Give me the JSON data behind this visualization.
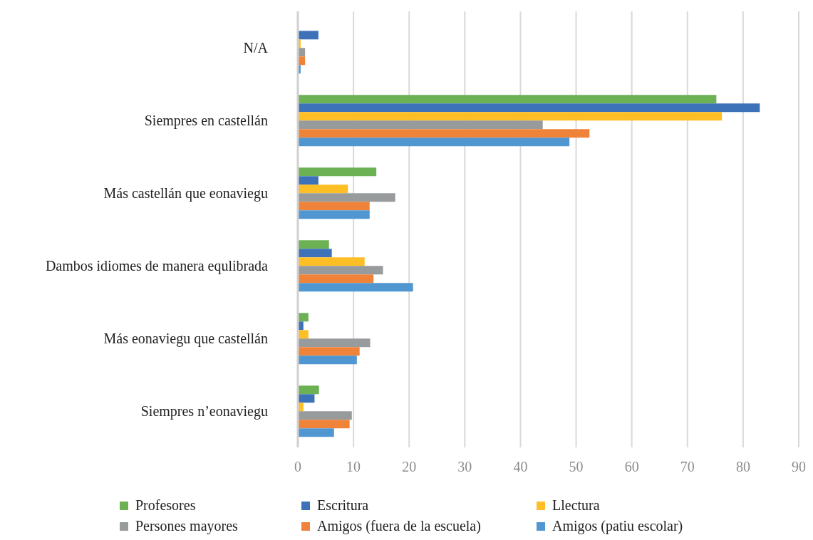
{
  "chart_data": {
    "type": "bar",
    "orientation": "horizontal",
    "categories": [
      "N/A",
      "Siempres en castellán",
      "Más castellán que eonaviegu",
      "Dambos idiomes de manera equlibrada",
      "Más eonaviegu que castellán",
      "Siempres n’eonaviegu"
    ],
    "series": [
      {
        "name": "Profesores",
        "color": "#6db155",
        "values": [
          0,
          75.2,
          14.1,
          5.6,
          1.9,
          3.8
        ]
      },
      {
        "name": "Escritura",
        "color": "#3d72b9",
        "values": [
          3.7,
          83.0,
          3.7,
          6.1,
          1.0,
          3.0
        ]
      },
      {
        "name": "Llectura",
        "color": "#febf26",
        "values": [
          0.5,
          76.2,
          9.0,
          12.0,
          1.9,
          1.0
        ]
      },
      {
        "name": "Persones mayores",
        "color": "#989b9c",
        "values": [
          1.3,
          44.0,
          17.5,
          15.3,
          13.0,
          9.7
        ]
      },
      {
        "name": "Amigos (fuera de la escuela)",
        "color": "#f0833a",
        "values": [
          1.3,
          52.4,
          12.9,
          13.6,
          11.1,
          9.3
        ]
      },
      {
        "name": "Amigos (patiu escolar)",
        "color": "#5097d1",
        "values": [
          0.5,
          48.8,
          12.9,
          20.7,
          10.6,
          6.5
        ]
      }
    ],
    "xlim": [
      0,
      90
    ],
    "xticks": [
      0,
      10,
      20,
      30,
      40,
      50,
      60,
      70,
      80,
      90
    ],
    "grid": "x",
    "legend": "bottom"
  }
}
